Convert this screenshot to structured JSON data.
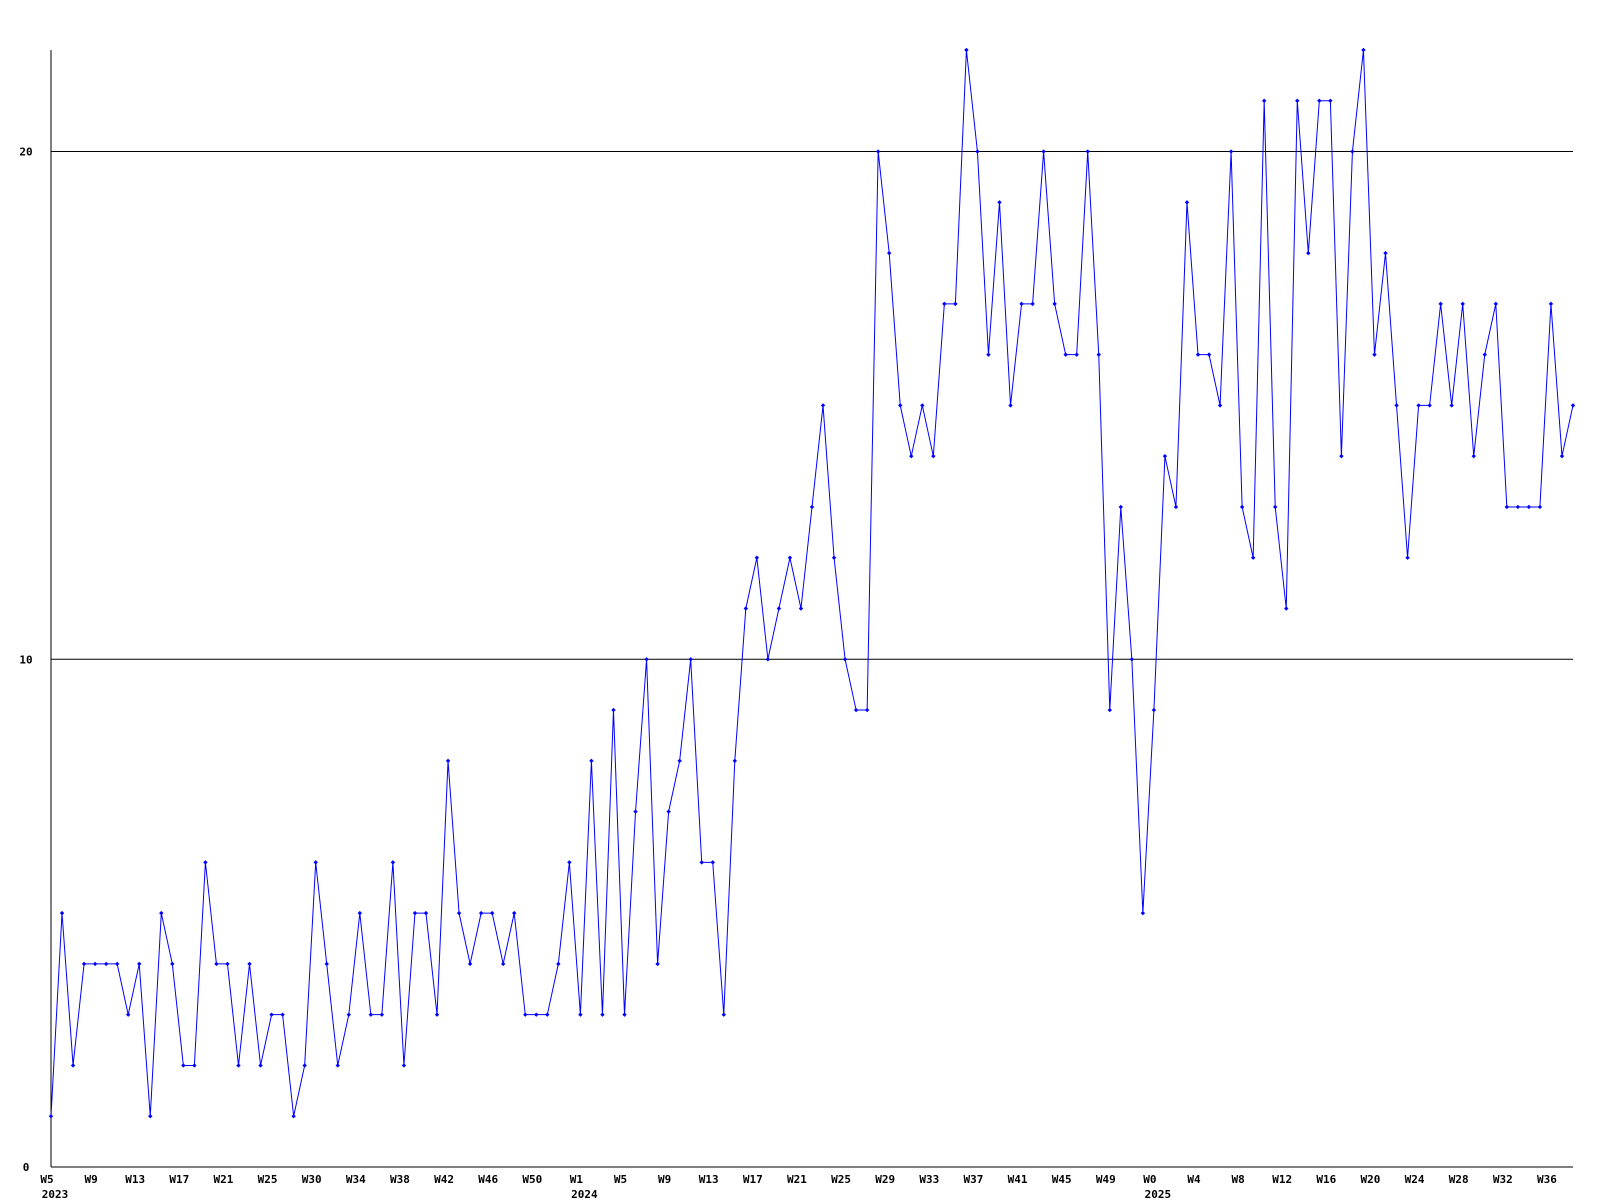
{
  "chart_data": {
    "type": "line",
    "categories": [
      "W5",
      null,
      null,
      null,
      "W9",
      null,
      null,
      null,
      "W13",
      null,
      null,
      null,
      "W17",
      null,
      null,
      null,
      "W21",
      null,
      null,
      null,
      "W25",
      null,
      null,
      null,
      "W30",
      null,
      null,
      null,
      "W34",
      null,
      null,
      null,
      "W38",
      null,
      null,
      null,
      "W42",
      null,
      null,
      null,
      "W46",
      null,
      null,
      null,
      "W50",
      null,
      null,
      null,
      "W1",
      null,
      null,
      null,
      "W5",
      null,
      null,
      null,
      "W9",
      null,
      null,
      null,
      "W13",
      null,
      null,
      null,
      "W17",
      null,
      null,
      null,
      "W21",
      null,
      null,
      null,
      "W25",
      null,
      null,
      null,
      "W29",
      null,
      null,
      null,
      "W33",
      null,
      null,
      null,
      "W37",
      null,
      null,
      null,
      "W41",
      null,
      null,
      null,
      "W45",
      null,
      null,
      null,
      "W49",
      null,
      null,
      null,
      "W0",
      null,
      null,
      null,
      "W4",
      null,
      null,
      null,
      "W8",
      null,
      null,
      null,
      "W12",
      null,
      null,
      null,
      "W16",
      null,
      null,
      null,
      "W20",
      null,
      null,
      null,
      "W24",
      null,
      null,
      null,
      "W28",
      null,
      null,
      null,
      "W32",
      null,
      null,
      null,
      "W36",
      null,
      null
    ],
    "category_years": [
      "2023",
      null,
      null,
      null,
      null,
      null,
      null,
      null,
      null,
      null,
      null,
      null,
      null,
      null,
      null,
      null,
      null,
      null,
      null,
      null,
      null,
      null,
      null,
      null,
      null,
      null,
      null,
      null,
      null,
      null,
      null,
      null,
      null,
      null,
      null,
      null,
      null,
      null,
      null,
      null,
      null,
      null,
      null,
      null,
      null,
      null,
      null,
      null,
      "2024",
      null,
      null,
      null,
      null,
      null,
      null,
      null,
      null,
      null,
      null,
      null,
      null,
      null,
      null,
      null,
      null,
      null,
      null,
      null,
      null,
      null,
      null,
      null,
      null,
      null,
      null,
      null,
      null,
      null,
      null,
      null,
      null,
      null,
      null,
      null,
      null,
      null,
      null,
      null,
      null,
      null,
      null,
      null,
      null,
      null,
      null,
      null,
      null,
      null,
      null,
      null,
      "2025",
      null,
      null,
      null,
      null,
      null,
      null,
      null,
      null,
      null,
      null,
      null,
      null,
      null,
      null,
      null,
      null,
      null,
      null,
      null,
      null,
      null,
      null,
      null,
      null,
      null,
      null,
      null,
      null,
      null,
      null,
      null,
      null,
      null,
      null,
      null,
      null,
      null,
      null
    ],
    "series": [
      {
        "color": "#0000ff",
        "values": [
          1,
          5,
          2,
          4,
          4,
          4,
          4,
          3,
          4,
          1,
          5,
          4,
          2,
          2,
          6,
          4,
          4,
          2,
          4,
          2,
          3,
          3,
          1,
          2,
          6,
          4,
          2,
          3,
          5,
          3,
          3,
          6,
          2,
          5,
          5,
          3,
          8,
          5,
          4,
          5,
          5,
          4,
          5,
          3,
          3,
          3,
          4,
          6,
          3,
          8,
          3,
          9,
          3,
          7,
          10,
          4,
          7,
          8,
          10,
          6,
          6,
          3,
          8,
          11,
          12,
          10,
          11,
          12,
          11,
          13,
          15,
          12,
          10,
          9,
          9,
          20,
          18,
          15,
          14,
          15,
          14,
          17,
          17,
          22,
          20,
          16,
          19,
          15,
          17,
          17,
          20,
          17,
          16,
          16,
          20,
          16,
          9,
          13,
          10,
          5,
          9,
          14,
          13,
          19,
          16,
          16,
          15,
          20,
          13,
          12,
          21,
          13,
          11,
          21,
          18,
          21,
          21,
          14,
          20,
          22,
          16,
          18,
          15,
          12,
          15,
          15,
          17,
          15,
          17,
          14,
          16,
          17,
          13,
          13,
          13,
          13,
          17,
          14,
          15
        ]
      }
    ],
    "ylim": [
      0,
      22
    ],
    "yticks": [
      0,
      10,
      20
    ],
    "grid": true
  }
}
